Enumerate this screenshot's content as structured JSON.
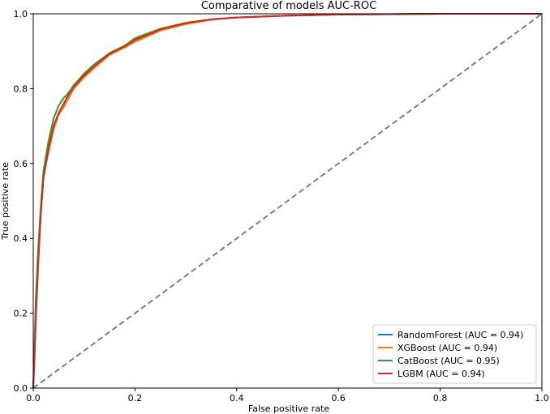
{
  "chart_data": {
    "type": "line",
    "title": "Comparative of models AUC-ROC",
    "xlabel": "False positive rate",
    "ylabel": "True positive rate",
    "xlim": [
      0.0,
      1.0
    ],
    "ylim": [
      0.0,
      1.0
    ],
    "grid": false,
    "legend_position": "lower-right",
    "x_ticks": [
      "0.0",
      "0.2",
      "0.4",
      "0.6",
      "0.8",
      "1.0"
    ],
    "y_ticks": [
      "0.0",
      "0.2",
      "0.4",
      "0.6",
      "0.8",
      "1.0"
    ],
    "diagonal": {
      "x": [
        0,
        1
      ],
      "y": [
        0,
        1
      ],
      "color": "#808080",
      "style": "dashed"
    },
    "series": [
      {
        "name": "RandomForest (AUC = 0.94)",
        "color": "#1f77b4",
        "x": [
          0,
          0.002,
          0.005,
          0.01,
          0.015,
          0.02,
          0.03,
          0.04,
          0.05,
          0.06,
          0.07,
          0.08,
          0.1,
          0.12,
          0.15,
          0.18,
          0.2,
          0.25,
          0.3,
          0.35,
          0.4,
          0.5,
          0.6,
          0.7,
          0.8,
          0.9,
          1.0
        ],
        "y": [
          0,
          0.08,
          0.2,
          0.35,
          0.47,
          0.56,
          0.64,
          0.7,
          0.735,
          0.76,
          0.785,
          0.805,
          0.835,
          0.86,
          0.895,
          0.915,
          0.93,
          0.96,
          0.975,
          0.985,
          0.99,
          0.995,
          0.998,
          0.999,
          1.0,
          1.0,
          1.0
        ]
      },
      {
        "name": "XGBoost (AUC = 0.94)",
        "color": "#ff7f0e",
        "x": [
          0,
          0.002,
          0.005,
          0.01,
          0.015,
          0.02,
          0.03,
          0.04,
          0.05,
          0.06,
          0.07,
          0.08,
          0.1,
          0.12,
          0.15,
          0.18,
          0.2,
          0.25,
          0.3,
          0.35,
          0.4,
          0.5,
          0.6,
          0.7,
          0.8,
          0.9,
          1.0
        ],
        "y": [
          0,
          0.07,
          0.19,
          0.34,
          0.47,
          0.57,
          0.63,
          0.69,
          0.73,
          0.75,
          0.775,
          0.8,
          0.83,
          0.855,
          0.89,
          0.91,
          0.925,
          0.955,
          0.972,
          0.984,
          0.99,
          0.995,
          0.998,
          0.999,
          1.0,
          1.0,
          1.0
        ]
      },
      {
        "name": "CatBoost (AUC = 0.95)",
        "color": "#2ca02c",
        "x": [
          0,
          0.002,
          0.005,
          0.01,
          0.015,
          0.02,
          0.03,
          0.04,
          0.05,
          0.06,
          0.07,
          0.08,
          0.1,
          0.12,
          0.15,
          0.18,
          0.2,
          0.25,
          0.3,
          0.35,
          0.4,
          0.5,
          0.6,
          0.7,
          0.8,
          0.9,
          1.0
        ],
        "y": [
          0,
          0.1,
          0.24,
          0.38,
          0.49,
          0.58,
          0.66,
          0.72,
          0.755,
          0.775,
          0.79,
          0.81,
          0.84,
          0.865,
          0.895,
          0.915,
          0.935,
          0.96,
          0.976,
          0.985,
          0.99,
          0.995,
          0.998,
          0.999,
          1.0,
          1.0,
          1.0
        ]
      },
      {
        "name": "LGBM (AUC = 0.94)",
        "color": "#d62728",
        "x": [
          0,
          0.002,
          0.005,
          0.01,
          0.015,
          0.02,
          0.03,
          0.04,
          0.05,
          0.06,
          0.07,
          0.08,
          0.1,
          0.12,
          0.15,
          0.18,
          0.2,
          0.25,
          0.3,
          0.35,
          0.4,
          0.5,
          0.6,
          0.7,
          0.8,
          0.9,
          1.0
        ],
        "y": [
          0,
          0.06,
          0.18,
          0.34,
          0.47,
          0.56,
          0.64,
          0.7,
          0.735,
          0.76,
          0.785,
          0.805,
          0.835,
          0.86,
          0.893,
          0.913,
          0.93,
          0.958,
          0.975,
          0.985,
          0.99,
          0.995,
          0.998,
          0.999,
          1.0,
          1.0,
          1.0
        ]
      }
    ]
  }
}
